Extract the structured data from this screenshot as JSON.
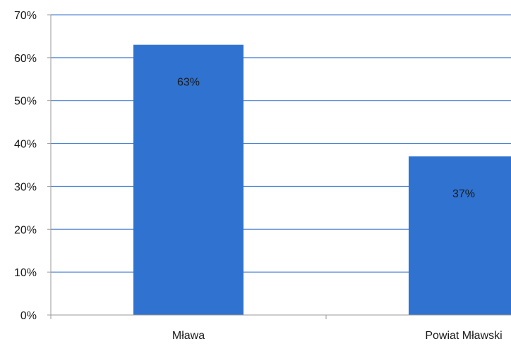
{
  "chart_data": {
    "type": "bar",
    "title": "",
    "xlabel": "",
    "ylabel": "",
    "categories": [
      "Mława",
      "Powiat Mławski"
    ],
    "values": [
      63,
      37
    ],
    "data_labels": [
      "63%",
      "37%"
    ],
    "ylim": [
      0,
      70
    ],
    "yticks": [
      0,
      10,
      20,
      30,
      40,
      50,
      60,
      70
    ],
    "ytick_labels": [
      "0%",
      "10%",
      "20%",
      "30%",
      "40%",
      "50%",
      "60%",
      "70%"
    ],
    "grid": true,
    "legend": "none",
    "colors": {
      "bar": "#2f72d0",
      "grid": "#2e6fcc",
      "axis": "#9a9a9a"
    }
  }
}
